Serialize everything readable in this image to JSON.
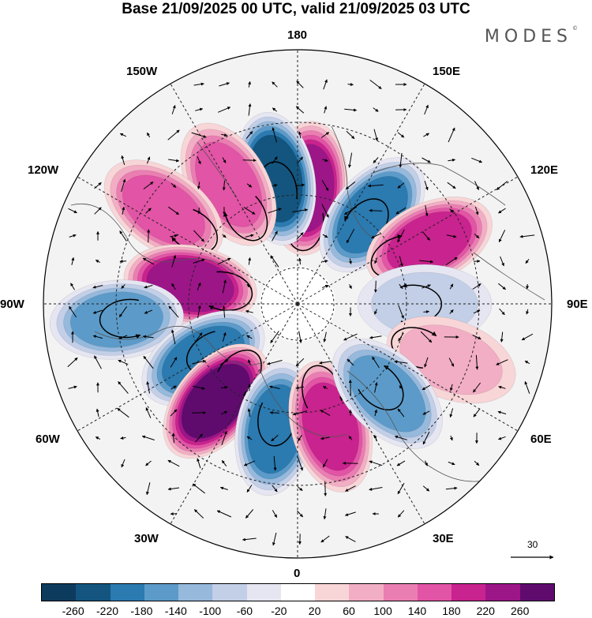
{
  "header": {
    "title": "Base 21/09/2025 00 UTC, valid 21/09/2025 03 UTC",
    "brand": "MODES",
    "brand_mark": "©"
  },
  "longitude_labels": {
    "top": "180",
    "bottom": "0",
    "left": "90W",
    "right": "90E",
    "upper_left": "150W",
    "upper_left2": "120W",
    "lower_left": "60W",
    "lower_left2": "30W",
    "upper_right": "150E",
    "upper_right2": "120E",
    "lower_right": "60E",
    "lower_right2": "30E"
  },
  "reference_vector": {
    "value": "30"
  },
  "colorbar": {
    "colors": [
      "#0d3b5e",
      "#13557f",
      "#2b7ab0",
      "#5c9bc9",
      "#96b9dc",
      "#c2cfe7",
      "#e6e6f2",
      "#ffffff",
      "#f8d5d7",
      "#f2aec4",
      "#ea7eb2",
      "#e254a5",
      "#c8238e",
      "#9c1688",
      "#5f0b6e"
    ],
    "ticks": [
      "-260",
      "-220",
      "-180",
      "-140",
      "-100",
      "-60",
      "-20",
      "20",
      "60",
      "100",
      "140",
      "180",
      "220",
      "260"
    ]
  },
  "map_data": {
    "anomaly_centers": [
      {
        "lon": 175,
        "lat": 58,
        "value": 240
      },
      {
        "lon": -170,
        "lat": 55,
        "value": -220
      },
      {
        "lon": -150,
        "lat": 52,
        "value": 170
      },
      {
        "lon": -125,
        "lat": 45,
        "value": 160
      },
      {
        "lon": 140,
        "lat": 58,
        "value": -180
      },
      {
        "lon": 115,
        "lat": 50,
        "value": 190
      },
      {
        "lon": 90,
        "lat": 55,
        "value": -90
      },
      {
        "lon": 70,
        "lat": 45,
        "value": 70
      },
      {
        "lon": -100,
        "lat": 60,
        "value": 240
      },
      {
        "lon": -85,
        "lat": 40,
        "value": -140
      },
      {
        "lon": -60,
        "lat": 60,
        "value": -200
      },
      {
        "lon": -40,
        "lat": 55,
        "value": 260
      },
      {
        "lon": -10,
        "lat": 55,
        "value": -210
      },
      {
        "lon": 15,
        "lat": 55,
        "value": 200
      },
      {
        "lon": 45,
        "lat": 55,
        "value": -160
      }
    ]
  }
}
